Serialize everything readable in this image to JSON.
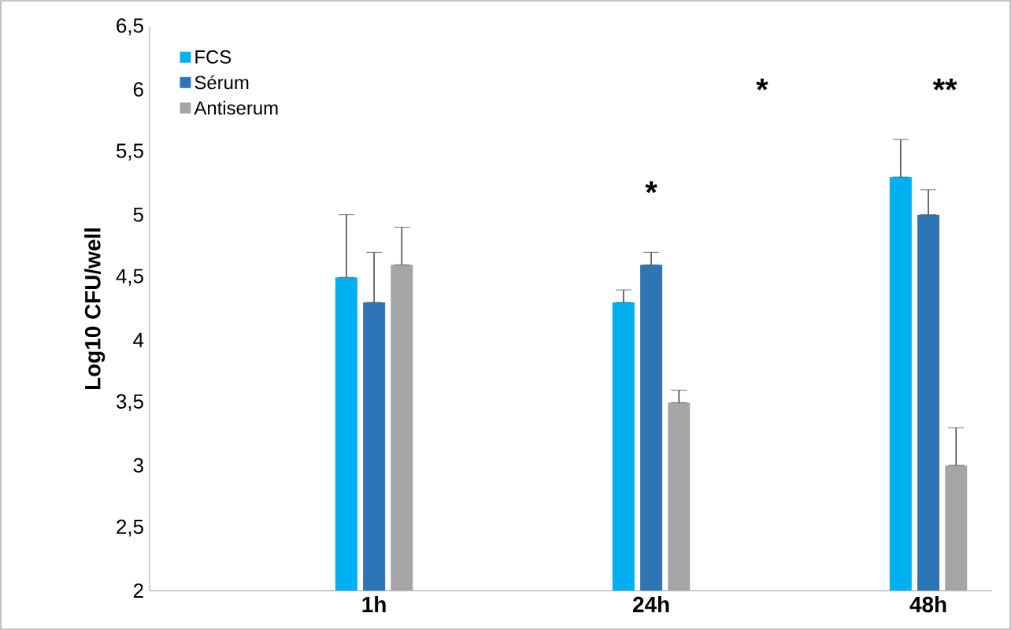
{
  "chart_data": {
    "type": "bar",
    "ylabel": "Log10 CFU/well",
    "categories": [
      "1h",
      "24h",
      "48h"
    ],
    "series": [
      {
        "name": "FCS",
        "color": "#00b0f0",
        "values": [
          4.5,
          4.3,
          5.3
        ],
        "errors": [
          [
            4.5,
            5.0
          ],
          [
            4.3,
            4.4
          ],
          [
            5.3,
            5.6
          ]
        ]
      },
      {
        "name": "Sérum",
        "color": "#2e75b6",
        "values": [
          4.3,
          4.6,
          5.0
        ],
        "errors": [
          [
            4.3,
            4.7
          ],
          [
            4.6,
            4.7
          ],
          [
            5.0,
            5.2
          ]
        ]
      },
      {
        "name": "Antiserum",
        "color": "#a5a5a5",
        "values": [
          4.6,
          3.5,
          3.0
        ],
        "errors": [
          [
            4.6,
            4.9
          ],
          [
            3.5,
            3.6
          ],
          [
            3.0,
            3.3
          ]
        ]
      }
    ],
    "ylim": [
      2,
      6.5
    ],
    "yticks": [
      2,
      {
        "value": 2.5,
        "label": "2,5"
      },
      3,
      {
        "value": 3.5,
        "label": "3,5"
      },
      4,
      {
        "value": 4.5,
        "label": "4,5"
      },
      5,
      {
        "value": 5.5,
        "label": "5,5"
      },
      6,
      {
        "value": 6.5,
        "label": "6,5"
      }
    ],
    "legend": "top left",
    "grid": false,
    "annotations": [
      "*",
      "*",
      "**"
    ]
  }
}
